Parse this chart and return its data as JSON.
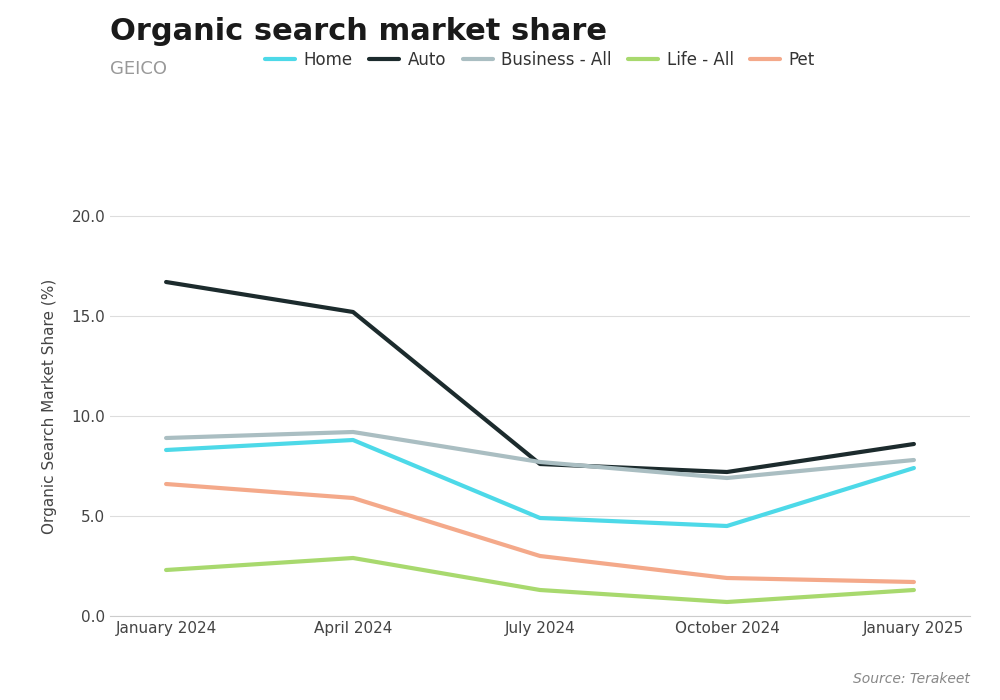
{
  "title": "Organic search market share",
  "subtitle": "GEICO",
  "ylabel": "Organic Search Market Share (%)",
  "source": "Source: Terakeet",
  "x_labels": [
    "January 2024",
    "April 2024",
    "July 2024",
    "October 2024",
    "January 2025"
  ],
  "series": [
    {
      "name": "Home",
      "color": "#4DD9E8",
      "linewidth": 3.0,
      "values": [
        8.3,
        8.8,
        4.9,
        4.5,
        7.4
      ]
    },
    {
      "name": "Auto",
      "color": "#1C2B2D",
      "linewidth": 3.0,
      "values": [
        16.7,
        15.2,
        7.6,
        7.2,
        8.6
      ]
    },
    {
      "name": "Business - All",
      "color": "#AABEC2",
      "linewidth": 3.0,
      "values": [
        8.9,
        9.2,
        7.7,
        6.9,
        7.8
      ]
    },
    {
      "name": "Life - All",
      "color": "#A8D96E",
      "linewidth": 3.0,
      "values": [
        2.3,
        2.9,
        1.3,
        0.7,
        1.3
      ]
    },
    {
      "name": "Pet",
      "color": "#F4A98A",
      "linewidth": 3.0,
      "values": [
        6.6,
        5.9,
        3.0,
        1.9,
        1.7
      ]
    }
  ],
  "ylim": [
    0.0,
    21.0
  ],
  "yticks": [
    0.0,
    5.0,
    10.0,
    15.0,
    20.0
  ],
  "background_color": "#FFFFFF",
  "grid_color": "#DDDDDD",
  "title_fontsize": 22,
  "subtitle_fontsize": 13,
  "legend_fontsize": 12,
  "axis_label_fontsize": 11,
  "tick_fontsize": 11,
  "source_fontsize": 10
}
